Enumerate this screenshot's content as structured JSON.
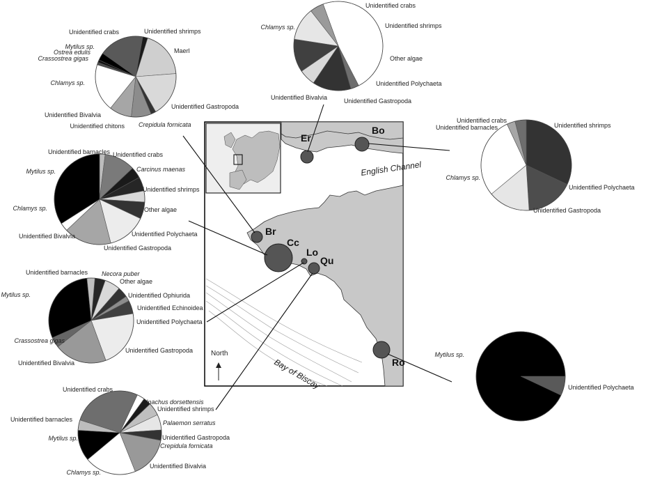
{
  "map": {
    "sites": [
      {
        "code": "Er"
      },
      {
        "code": "Bo"
      },
      {
        "code": "Br"
      },
      {
        "code": "Cc"
      },
      {
        "code": "Lo"
      },
      {
        "code": "Qu"
      },
      {
        "code": "Ro"
      }
    ],
    "sea_labels": [
      "English Channel",
      "Bay of Biscay"
    ],
    "north_label": "North"
  },
  "chart_data": [
    {
      "type": "pie",
      "site": "Er",
      "slices": [
        {
          "label": "Chlamys sp.",
          "value": 48,
          "color": "#ffffff",
          "italic": true
        },
        {
          "label": "Unidentified crabs",
          "value": 3,
          "color": "#6e6e6e"
        },
        {
          "label": "Unidentified shrimps",
          "value": 14,
          "color": "#333333"
        },
        {
          "label": "Other algae",
          "value": 6,
          "color": "#d9d9d9"
        },
        {
          "label": "Unidentified Polychaeta",
          "value": 12,
          "color": "#404040"
        },
        {
          "label": "Unidentified Gastropoda",
          "value": 12,
          "color": "#e6e6e6"
        },
        {
          "label": "Unidentified Bivalvia",
          "value": 5,
          "color": "#9a9a9a"
        }
      ]
    },
    {
      "type": "pie",
      "site": "Br",
      "slices": [
        {
          "label": "Unidentified shrimps",
          "value": 2,
          "color": "#1a1a1a"
        },
        {
          "label": "Maerl",
          "value": 19,
          "color": "#cfcfcf"
        },
        {
          "label": "Unidentified Gastropoda",
          "value": 18,
          "color": "#d9d9d9"
        },
        {
          "label": "Crepidula fornicata",
          "value": 2,
          "color": "#333333",
          "italic": true
        },
        {
          "label": "Unidentified chitons",
          "value": 8,
          "color": "#8c8c8c"
        },
        {
          "label": "Unidentified Bivalvia",
          "value": 9,
          "color": "#a6a6a6"
        },
        {
          "label": "Chlamys sp.",
          "value": 19,
          "color": "#ffffff",
          "italic": true
        },
        {
          "label": "Crassostrea gigas",
          "value": 1,
          "color": "#4d4d4d",
          "italic": true
        },
        {
          "label": "Ostrea edulis",
          "value": 1,
          "color": "#111111",
          "italic": true
        },
        {
          "label": "Mytilus sp.",
          "value": 3,
          "color": "#000000",
          "italic": true
        },
        {
          "label": "Unidentified crabs",
          "value": 18,
          "color": "#595959"
        }
      ]
    },
    {
      "type": "pie",
      "site": "Cc",
      "slices": [
        {
          "label": "Unidentified barnacles",
          "value": 2,
          "color": "#bdbdbd"
        },
        {
          "label": "Unidentified crabs",
          "value": 11,
          "color": "#7a7a7a"
        },
        {
          "label": "Carcinus maenas",
          "value": 4,
          "color": "#1a1a1a",
          "italic": true
        },
        {
          "label": "Unidentified shrimps",
          "value": 5,
          "color": "#262626"
        },
        {
          "label": "Other algae",
          "value": 4,
          "color": "#d9d9d9"
        },
        {
          "label": "Unidentified Polychaeta",
          "value": 6,
          "color": "#333333"
        },
        {
          "label": "Unidentified Gastropoda",
          "value": 14,
          "color": "#ececec"
        },
        {
          "label": "Unidentified Bivalvia",
          "value": 17,
          "color": "#a6a6a6"
        },
        {
          "label": "Chlamys sp.",
          "value": 3,
          "color": "#ffffff",
          "italic": true
        },
        {
          "label": "Mytilus sp.",
          "value": 34,
          "color": "#000000",
          "italic": true
        }
      ]
    },
    {
      "type": "pie",
      "site": "Lo",
      "slices": [
        {
          "label": "Necora puber",
          "value": 4,
          "color": "#262626",
          "italic": true
        },
        {
          "label": "Other algae",
          "value": 6,
          "color": "#d9d9d9"
        },
        {
          "label": "Unidentified Ophiurida",
          "value": 4,
          "color": "#333333"
        },
        {
          "label": "Unidentified Echinoidea",
          "value": 2,
          "color": "#8c8c8c"
        },
        {
          "label": "Unidentified Polychaeta",
          "value": 5,
          "color": "#404040"
        },
        {
          "label": "Unidentified Gastropoda",
          "value": 22,
          "color": "#ececec"
        },
        {
          "label": "Unidentified Bivalvia",
          "value": 20,
          "color": "#999999"
        },
        {
          "label": "Crassostrea gigas",
          "value": 4,
          "color": "#666666",
          "italic": true
        },
        {
          "label": "Mytilus sp.",
          "value": 30,
          "color": "#000000",
          "italic": true
        },
        {
          "label": "Unidentified barnacles",
          "value": 3,
          "color": "#bfbfbf"
        }
      ]
    },
    {
      "type": "pie",
      "site": "Qu",
      "slices": [
        {
          "label": "Inachus dorsettensis",
          "value": 3,
          "color": "#ffffff",
          "italic": true
        },
        {
          "label": "Unidentified shrimps",
          "value": 3,
          "color": "#1a1a1a"
        },
        {
          "label": "Palaemon serratus",
          "value": 5,
          "color": "#bfbfbf",
          "italic": true
        },
        {
          "label": "Unidentified Gastropoda",
          "value": 6,
          "color": "#e6e6e6"
        },
        {
          "label": "Crepidula fornicata",
          "value": 4,
          "color": "#333333",
          "italic": true
        },
        {
          "label": "Unidentified Bivalvia",
          "value": 16,
          "color": "#999999"
        },
        {
          "label": "Chlamys sp.",
          "value": 20,
          "color": "#ffffff",
          "italic": true
        },
        {
          "label": "Mytilus sp.",
          "value": 12,
          "color": "#000000",
          "italic": true
        },
        {
          "label": "Unidentified barnacles",
          "value": 4,
          "color": "#bdbdbd"
        },
        {
          "label": "Unidentified crabs",
          "value": 27,
          "color": "#6e6e6e"
        }
      ]
    },
    {
      "type": "pie",
      "site": "Bo",
      "slices": [
        {
          "label": "Unidentified shrimps",
          "value": 32,
          "color": "#333333"
        },
        {
          "label": "Unidentified Polychaeta",
          "value": 17,
          "color": "#4d4d4d"
        },
        {
          "label": "Unidentified Gastropoda",
          "value": 15,
          "color": "#e6e6e6"
        },
        {
          "label": "Chlamys sp.",
          "value": 29,
          "color": "#ffffff",
          "italic": true
        },
        {
          "label": "Unidentified barnacles",
          "value": 3,
          "color": "#a6a6a6"
        },
        {
          "label": "Unidentified crabs",
          "value": 4,
          "color": "#6e6e6e"
        }
      ]
    },
    {
      "type": "pie",
      "site": "Ro",
      "slices": [
        {
          "label": "Unidentified Polychaeta",
          "value": 7,
          "color": "#595959"
        },
        {
          "label": "Mytilus sp.",
          "value": 93,
          "color": "#000000",
          "italic": true
        }
      ]
    }
  ]
}
